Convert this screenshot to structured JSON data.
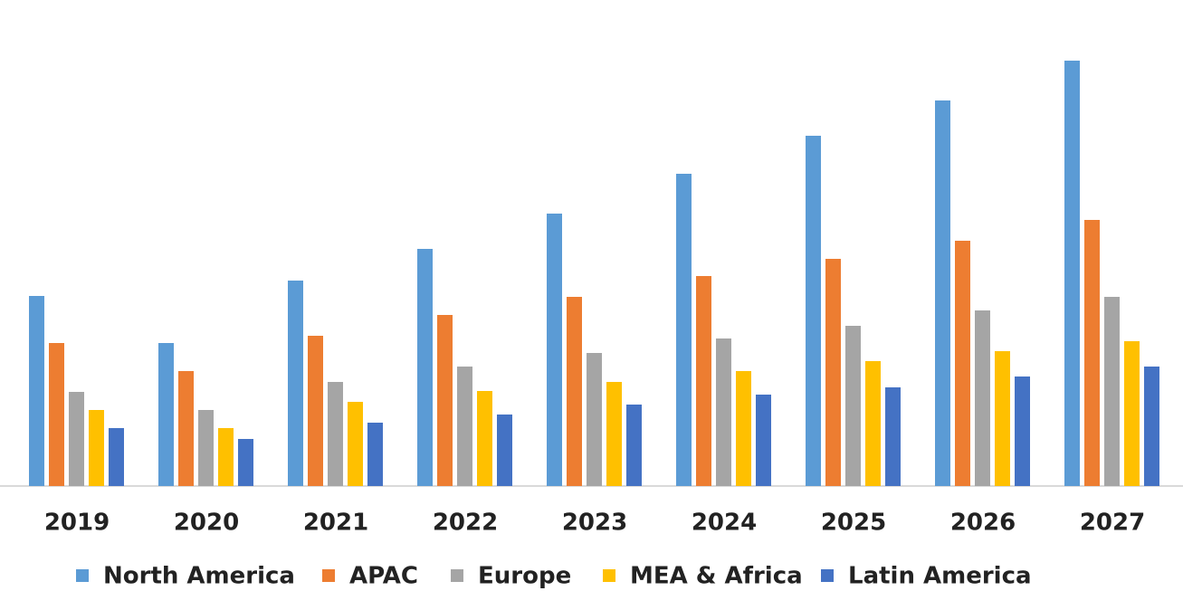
{
  "chart_data": {
    "type": "bar",
    "categories": [
      "2019",
      "2020",
      "2021",
      "2022",
      "2023",
      "2024",
      "2025",
      "2026",
      "2027"
    ],
    "series": [
      {
        "name": "North America",
        "color": "#5b9bd5",
        "values": [
          210,
          158,
          227,
          262,
          301,
          345,
          387,
          426,
          470
        ]
      },
      {
        "name": "APAC",
        "color": "#ed7d31",
        "values": [
          158,
          127,
          166,
          189,
          209,
          232,
          251,
          271,
          294
        ]
      },
      {
        "name": "Europe",
        "color": "#a5a5a5",
        "values": [
          104,
          84,
          115,
          132,
          147,
          163,
          177,
          194,
          209
        ]
      },
      {
        "name": "MEA & Africa",
        "color": "#ffc000",
        "values": [
          84,
          64,
          93,
          105,
          115,
          127,
          138,
          149,
          160
        ]
      },
      {
        "name": "Latin America",
        "color": "#4472c4",
        "values": [
          64,
          52,
          70,
          79,
          90,
          101,
          109,
          121,
          132
        ]
      }
    ],
    "ylim": [
      0,
      480
    ]
  }
}
